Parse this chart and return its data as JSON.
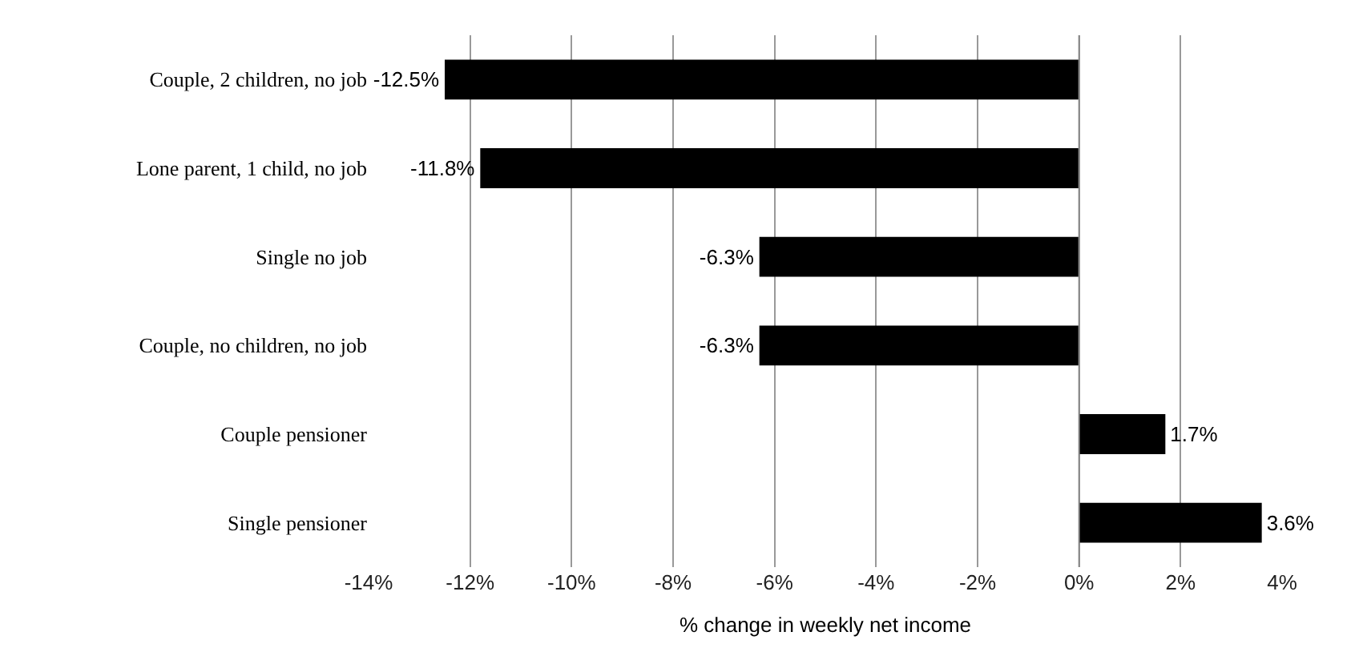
{
  "chart_data": {
    "type": "bar",
    "orientation": "horizontal",
    "xlabel": "% change in weekly net income",
    "categories": [
      "Couple, 2 children, no job",
      "Lone parent, 1 child, no job",
      "Single no job",
      "Couple, no children, no job",
      "Couple pensioner",
      "Single pensioner"
    ],
    "values": [
      -12.5,
      -11.8,
      -6.3,
      -6.3,
      1.7,
      3.6
    ],
    "value_labels": [
      "-12.5%",
      "-11.8%",
      "-6.3%",
      "-6.3%",
      "1.7%",
      "3.6%"
    ],
    "color": "#000000",
    "xlim": [
      -14,
      4
    ],
    "xticks": [
      {
        "value": -14,
        "label": "-14%"
      },
      {
        "value": -12,
        "label": "-12%"
      },
      {
        "value": -10,
        "label": "-10%"
      },
      {
        "value": -8,
        "label": "-8%"
      },
      {
        "value": -6,
        "label": "-6%"
      },
      {
        "value": -4,
        "label": "-4%"
      },
      {
        "value": -2,
        "label": "-2%"
      },
      {
        "value": 0,
        "label": "0%"
      },
      {
        "value": 2,
        "label": "2%"
      },
      {
        "value": 4,
        "label": "4%"
      }
    ],
    "grid": "x"
  }
}
